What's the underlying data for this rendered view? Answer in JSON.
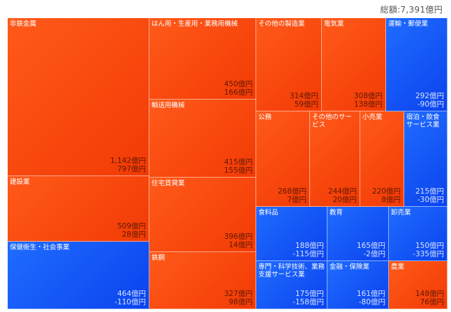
{
  "total_label": "総額:7,391億円",
  "colors": {
    "positive": "#f5420a",
    "negative": "#1656f5"
  },
  "chart_data": {
    "type": "treemap",
    "title": "",
    "total": "総額:7,391億円",
    "items": [
      {
        "name": "非鉄金属",
        "value": "1,142億円",
        "change": "797億円",
        "amount": 1142,
        "delta": 797
      },
      {
        "name": "建設業",
        "value": "509億円",
        "change": "28億円",
        "amount": 509,
        "delta": 28
      },
      {
        "name": "保健衛生・社会事業",
        "value": "464億円",
        "change": "-110億円",
        "amount": 464,
        "delta": -110
      },
      {
        "name": "はん用・生産用・業務用機械",
        "value": "450億円",
        "change": "166億円",
        "amount": 450,
        "delta": 166
      },
      {
        "name": "輸送用機械",
        "value": "415億円",
        "change": "155億円",
        "amount": 415,
        "delta": 155
      },
      {
        "name": "住宅賃貸業",
        "value": "396億円",
        "change": "14億円",
        "amount": 396,
        "delta": 14
      },
      {
        "name": "鉄鋼",
        "value": "327億円",
        "change": "98億円",
        "amount": 327,
        "delta": 98
      },
      {
        "name": "その他の製造業",
        "value": "314億円",
        "change": "59億円",
        "amount": 314,
        "delta": 59
      },
      {
        "name": "電気業",
        "value": "308億円",
        "change": "138億円",
        "amount": 308,
        "delta": 138
      },
      {
        "name": "運輸・郵便業",
        "value": "292億円",
        "change": "-90億円",
        "amount": 292,
        "delta": -90
      },
      {
        "name": "公務",
        "value": "268億円",
        "change": "7億円",
        "amount": 268,
        "delta": 7
      },
      {
        "name": "その他のサービス",
        "value": "244億円",
        "change": "20億円",
        "amount": 244,
        "delta": 20
      },
      {
        "name": "小売業",
        "value": "220億円",
        "change": "8億円",
        "amount": 220,
        "delta": 8
      },
      {
        "name": "宿泊・飲食サービス業",
        "value": "215億円",
        "change": "-30億円",
        "amount": 215,
        "delta": -30
      },
      {
        "name": "食料品",
        "value": "188億円",
        "change": "-115億円",
        "amount": 188,
        "delta": -115
      },
      {
        "name": "教育",
        "value": "165億円",
        "change": "-2億円",
        "amount": 165,
        "delta": -2
      },
      {
        "name": "卸売業",
        "value": "150億円",
        "change": "-335億円",
        "amount": 150,
        "delta": -335
      },
      {
        "name": "専門・科学技術、業務支援サービス業",
        "value": "175億円",
        "change": "-158億円",
        "amount": 175,
        "delta": -158
      },
      {
        "name": "金融・保険業",
        "value": "161億円",
        "change": "-80億円",
        "amount": 161,
        "delta": -80
      },
      {
        "name": "農業",
        "value": "148億円",
        "change": "76億円",
        "amount": 148,
        "delta": 76
      }
    ]
  }
}
